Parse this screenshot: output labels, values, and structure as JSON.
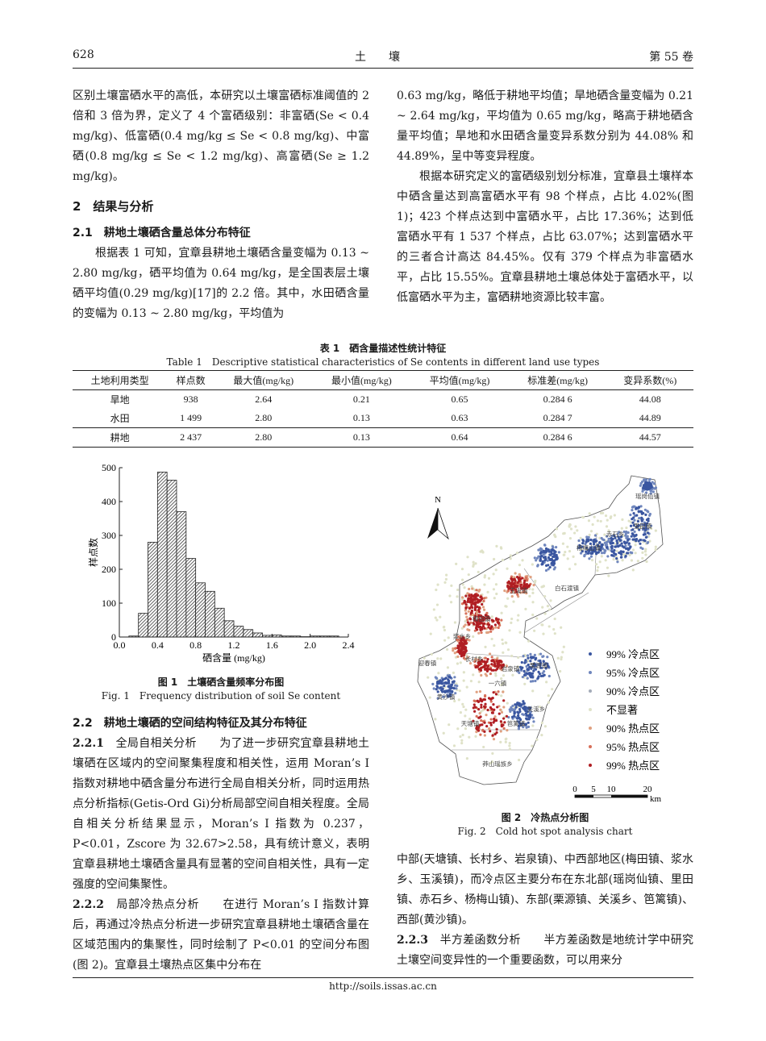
{
  "header": {
    "page_number": "628",
    "journal": "土　　壤",
    "volume": "第 55 卷"
  },
  "left_top": {
    "p1": "区别土壤富硒水平的高低，本研究以土壤富硒标准阈值的 2 倍和 3 倍为界，定义了 4 个富硒级别：非富硒(Se < 0.4 mg/kg)、低富硒(0.4 mg/kg ≤ Se < 0.8 mg/kg)、中富硒(0.8 mg/kg ≤ Se < 1.2 mg/kg)、高富硒(Se ≥ 1.2 mg/kg)。",
    "sec2": "2　结果与分析",
    "sec21": "2.1　耕地土壤硒含量总体分布特征",
    "p2": "根据表 1 可知，宜章县耕地土壤硒含量变幅为 0.13 ~ 2.80 mg/kg，硒平均值为 0.64 mg/kg，是全国表层土壤硒平均值(0.29 mg/kg)[17]的 2.2 倍。其中，水田硒含量的变幅为 0.13 ~ 2.80 mg/kg，平均值为"
  },
  "right_top": {
    "p1": "0.63 mg/kg，略低于耕地平均值；旱地硒含量变幅为 0.21 ~ 2.64 mg/kg，平均值为 0.65 mg/kg，略高于耕地硒含量平均值；旱地和水田硒含量变异系数分别为 44.08% 和 44.89%，呈中等变异程度。",
    "p2": "根据本研究定义的富硒级别划分标准，宜章县土壤样本中硒含量达到高富硒水平有 98 个样点，占比 4.02%(图 1)；423 个样点达到中富硒水平，占比 17.36%；达到低富硒水平有 1 537 个样点，占比 63.07%；达到富硒水平的三者合计高达 84.45%。仅有 379 个样点为非富硒水平，占比 15.55%。宜章县耕地土壤总体处于富硒水平，以低富硒水平为主，富硒耕地资源比较丰富。"
  },
  "table1": {
    "caption_cn": "表 1　硒含量描述性统计特征",
    "caption_en": "Table 1　Descriptive statistical characteristics of Se contents in different land use types",
    "headers": [
      "土地利用类型",
      "样点数",
      "最大值(mg/kg)",
      "最小值(mg/kg)",
      "平均值(mg/kg)",
      "标准差(mg/kg)",
      "变异系数(%)"
    ],
    "rows": [
      [
        "旱地",
        "938",
        "2.64",
        "0.21",
        "0.65",
        "0.284 6",
        "44.08"
      ],
      [
        "水田",
        "1 499",
        "2.80",
        "0.13",
        "0.63",
        "0.284 7",
        "44.89"
      ],
      [
        "耕地",
        "2 437",
        "2.80",
        "0.13",
        "0.64",
        "0.284 6",
        "44.57"
      ]
    ]
  },
  "chart_data": {
    "type": "bar",
    "title": "",
    "xlabel": "硒含量 (mg/kg)",
    "ylabel": "样点数",
    "xlim": [
      0,
      2.4
    ],
    "ylim": [
      0,
      500
    ],
    "xticks": [
      "0.0",
      "0.4",
      "0.8",
      "1.2",
      "1.6",
      "2.0",
      "2.4"
    ],
    "yticks": [
      "0",
      "100",
      "200",
      "300",
      "400",
      "500"
    ],
    "bin_width": 0.1,
    "bin_starts": [
      0.1,
      0.2,
      0.3,
      0.4,
      0.5,
      0.6,
      0.7,
      0.8,
      0.9,
      1.0,
      1.1,
      1.2,
      1.3,
      1.4,
      1.5,
      1.6,
      1.7,
      1.8,
      1.9,
      2.0,
      2.1,
      2.2
    ],
    "values": [
      3,
      70,
      280,
      487,
      463,
      370,
      232,
      160,
      135,
      85,
      48,
      32,
      22,
      12,
      5,
      6,
      3,
      3,
      1,
      3,
      3,
      3
    ],
    "fill": "hatched",
    "grid": false
  },
  "fig1": {
    "caption_cn": "图 1　土壤硒含量频率分布图",
    "caption_en": "Fig. 1　Frequency distribution of soil Se content"
  },
  "fig2": {
    "caption_cn": "图 2　冷热点分析图",
    "caption_en": "Fig. 2　Cold hot spot analysis chart",
    "north": "N",
    "legend": [
      {
        "label": "99% 冷点区",
        "color": "#3a56a0"
      },
      {
        "label": "95% 冷点区",
        "color": "#6f86bd"
      },
      {
        "label": "90% 冷点区",
        "color": "#a3abb8"
      },
      {
        "label": "不显著",
        "color": "#dfe2c8"
      },
      {
        "label": "90% 热点区",
        "color": "#e0a080"
      },
      {
        "label": "95% 热点区",
        "color": "#d7705a"
      },
      {
        "label": "99% 热点区",
        "color": "#b01e23"
      }
    ],
    "towns": [
      "瑶岗仙镇",
      "里田镇",
      "赤石乡",
      "杨梅山镇",
      "白石渡镇",
      "玉溪镇",
      "梅田镇",
      "浆水乡",
      "迎春镇",
      "长村乡",
      "岩泉镇",
      "栗源镇",
      "一六镇",
      "黄沙镇",
      "关溪乡",
      "笆篱镇",
      "天塘镇",
      "莽山瑶族乡"
    ],
    "scale": [
      "0",
      "5",
      "10",
      "20"
    ],
    "scale_unit": "km"
  },
  "left_bottom": {
    "sec22": "2.2　耕地土壤硒的空间结构特征及其分布特征",
    "h221": "2.2.1",
    "t221": "全局自相关分析",
    "p221": "为了进一步研究宜章县耕地土壤硒在区域内的空间聚集程度和相关性，运用 Moran’s I 指数对耕地中硒含量分布进行全局自相关分析，同时运用热点分析指标(Getis-Ord Gi)分析局部空间自相关程度。全局自相关分析结果显示，Moran’s I 指数为 0.237，P<0.01，Zscore 为 32.67>2.58，具有统计意义，表明宜章县耕地土壤硒含量具有显著的空间自相关性，具有一定强度的空间集聚性。",
    "h222": "2.2.2",
    "t222": "局部冷热点分析",
    "p222": "在进行 Moran’s I 指数计算后，再通过冷热点分析进一步研究宜章县耕地土壤硒含量在区域范围内的集聚性，同时绘制了 P<0.01 的空间分布图(图 2)。宜章县土壤热点区集中分布在"
  },
  "right_bottom": {
    "p1": "中部(天塘镇、长村乡、岩泉镇)、中西部地区(梅田镇、浆水乡、玉溪镇)，而冷点区主要分布在东北部(瑶岗仙镇、里田镇、赤石乡、杨梅山镇)、东部(栗源镇、关溪乡、笆篱镇)、西部(黄沙镇)。",
    "h223": "2.2.3",
    "t223": "半方差函数分析",
    "p223": "半方差函数是地统计学中研究土壤空间变异性的一个重要函数，可以用来分"
  },
  "footer": {
    "url": "http://soils.issas.ac.cn"
  }
}
